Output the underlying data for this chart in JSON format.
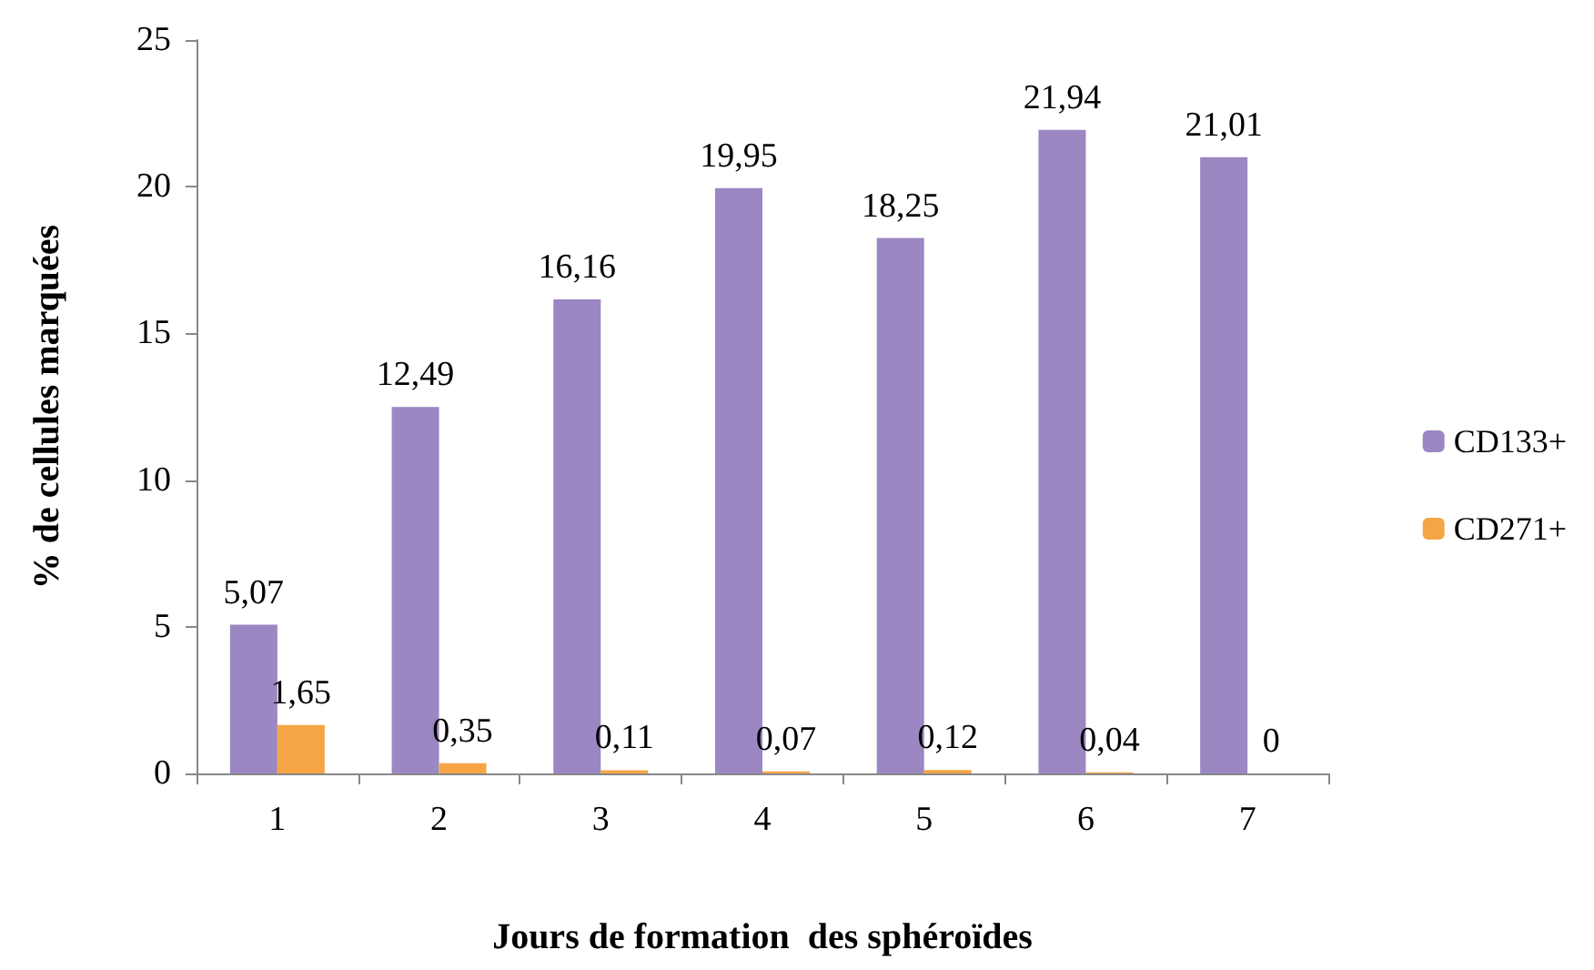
{
  "chart_data": {
    "type": "bar",
    "xlabel": "Jours de formation  des sphéroïdes",
    "ylabel": "% de cellules marquées",
    "categories": [
      "1",
      "2",
      "3",
      "4",
      "5",
      "6",
      "7"
    ],
    "series": [
      {
        "name": "CD133+",
        "color": "#9b87c1",
        "values": [
          5.07,
          12.49,
          16.16,
          19.95,
          18.25,
          21.94,
          21.01
        ],
        "value_labels": [
          "5,07",
          "12,49",
          "16,16",
          "19,95",
          "18,25",
          "21,94",
          "21,01"
        ]
      },
      {
        "name": "CD271+",
        "color": "#f5a545",
        "values": [
          1.65,
          0.35,
          0.11,
          0.07,
          0.12,
          0.04,
          0
        ],
        "value_labels": [
          "1,65",
          "0,35",
          "0,11",
          "0,07",
          "0,12",
          "0,04",
          "0"
        ]
      }
    ],
    "ylim": [
      0,
      25
    ],
    "yticks": [
      0,
      5,
      10,
      15,
      20,
      25
    ],
    "grid": false,
    "legend": "right"
  }
}
